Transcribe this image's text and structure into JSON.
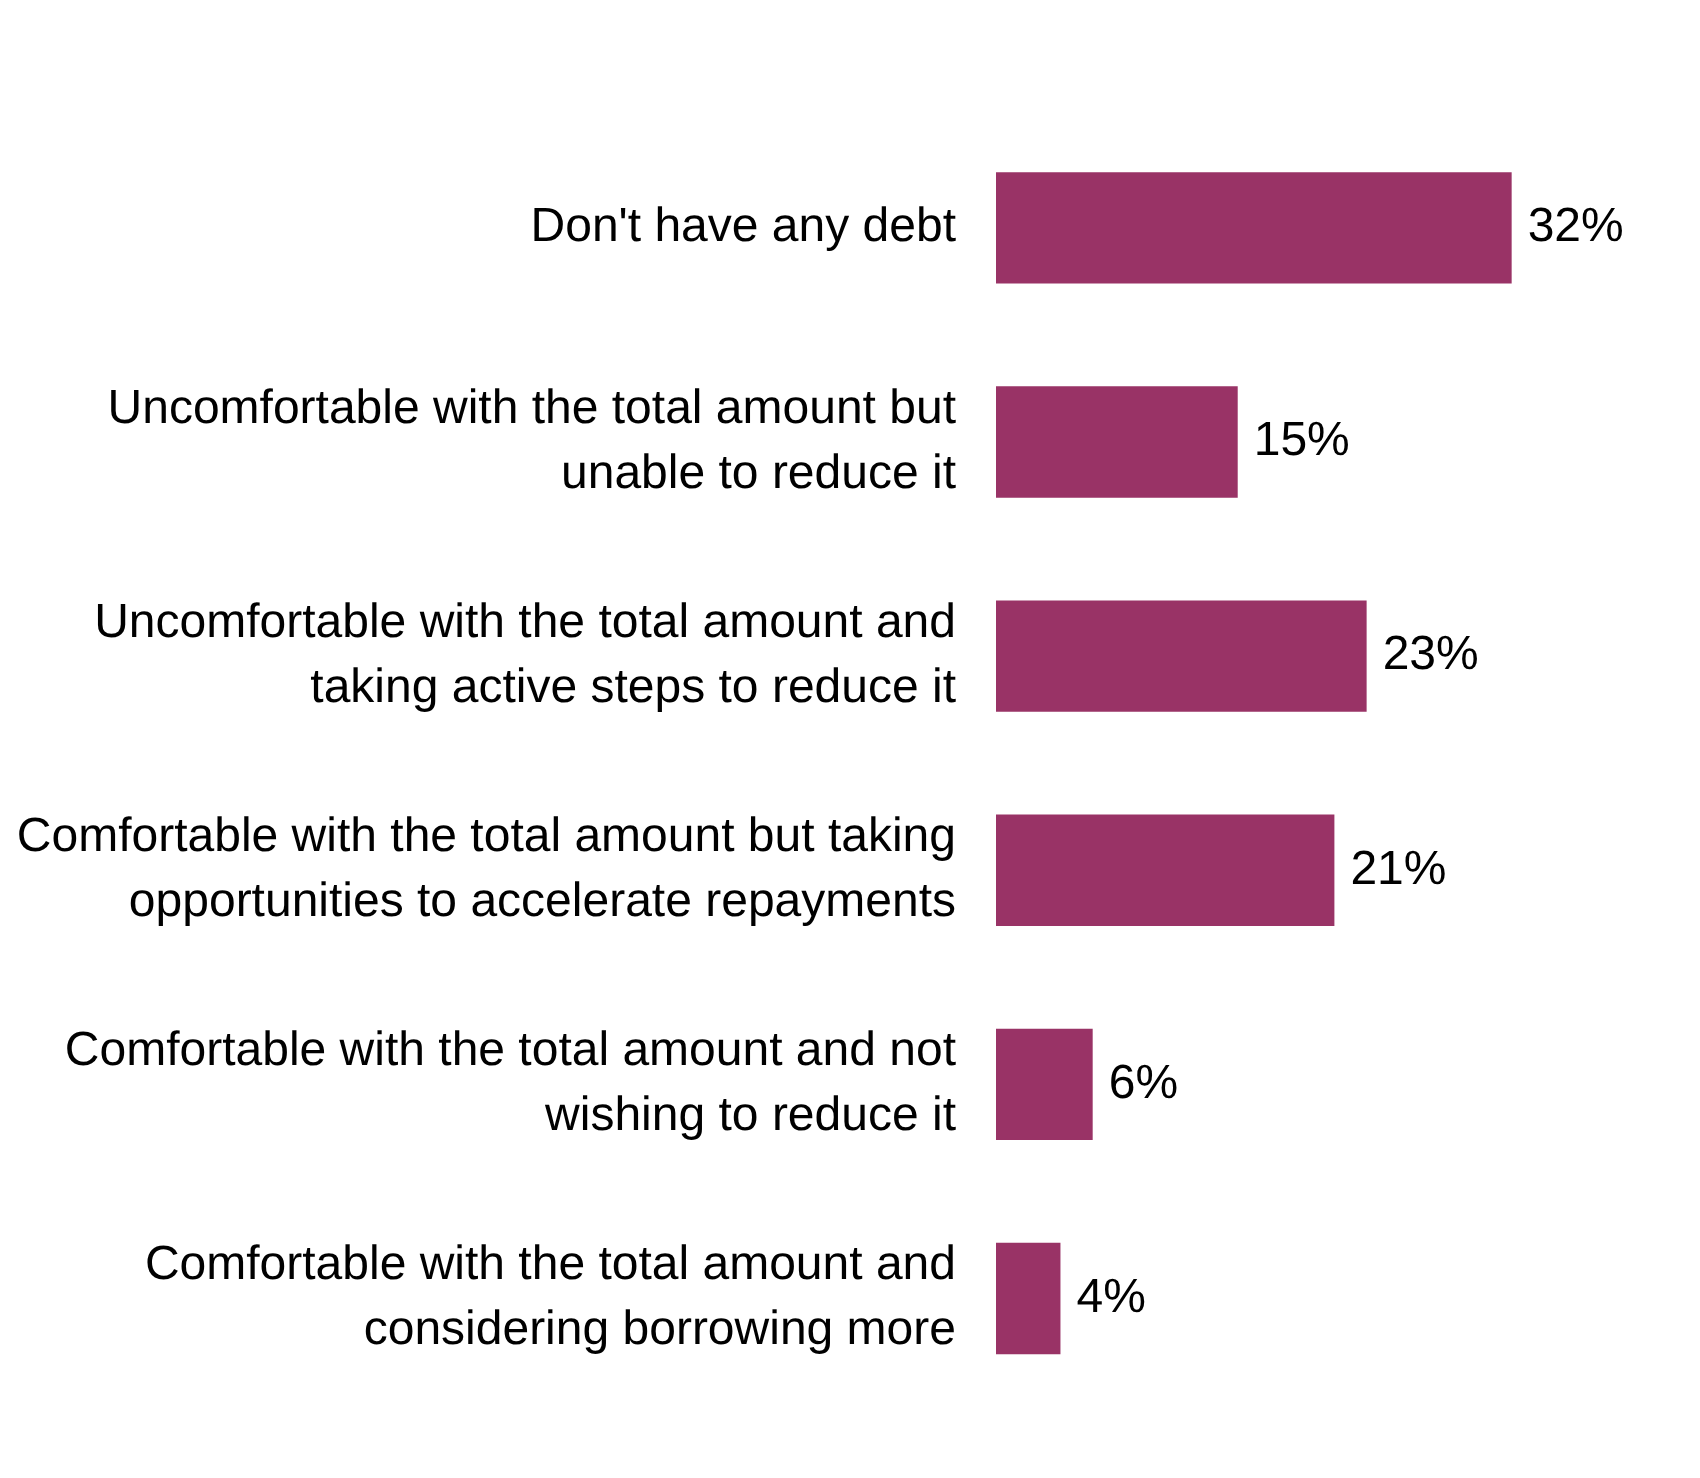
{
  "chart_data": {
    "type": "bar",
    "orientation": "horizontal",
    "categories": [
      "Don't have any debt",
      "Uncomfortable with the total amount but unable to reduce it",
      "Uncomfortable with the total amount and taking active steps to reduce it",
      "Comfortable with the total amount but taking opportunities to accelerate repayments",
      "Comfortable with the total amount and not wishing to reduce it",
      "Comfortable with the total amount and considering borrowing more"
    ],
    "values": [
      32,
      15,
      23,
      21,
      6,
      4
    ],
    "value_labels": [
      "32%",
      "15%",
      "23%",
      "21%",
      "6%",
      "4%"
    ],
    "color": "#993366",
    "legend": false
  }
}
